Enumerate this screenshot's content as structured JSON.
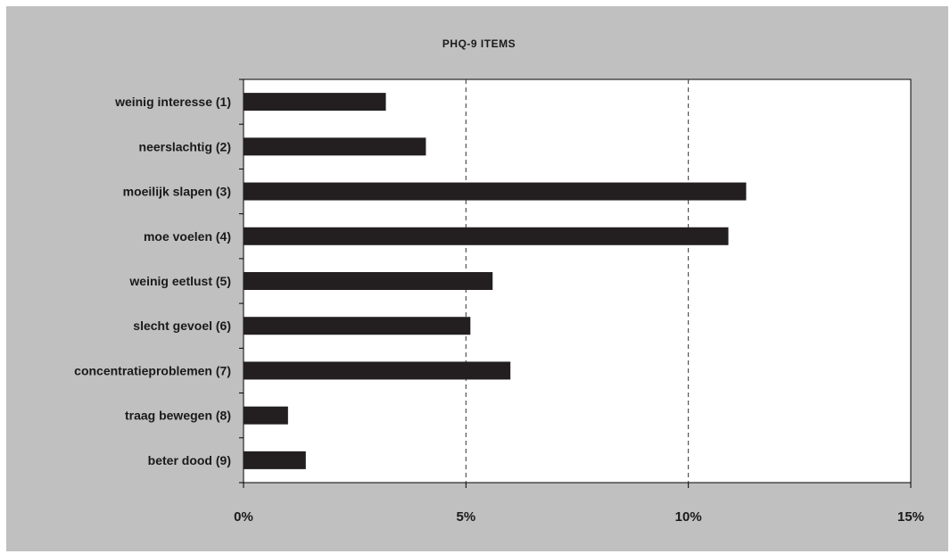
{
  "chart_data": {
    "type": "bar",
    "orientation": "horizontal",
    "title": "PHQ-9 ITEMS",
    "categories": [
      "weinig interesse (1)",
      "neerslachtig (2)",
      "moeilijk slapen (3)",
      "moe voelen (4)",
      "weinig eetlust (5)",
      "slecht gevoel (6)",
      "concentratieproblemen (7)",
      "traag bewegen (8)",
      "beter dood (9)"
    ],
    "values": [
      3.2,
      4.1,
      11.3,
      10.9,
      5.6,
      5.1,
      6.0,
      1.0,
      1.4
    ],
    "xlim": [
      0,
      15
    ],
    "xticks": [
      0,
      5,
      10,
      15
    ],
    "xtick_labels": [
      "0%",
      "5%",
      "10%",
      "15%"
    ],
    "grid": "vertical dashed",
    "bar_color": "#231f20",
    "plot_background": "#ffffff",
    "frame_background": "#c0c0c0"
  }
}
